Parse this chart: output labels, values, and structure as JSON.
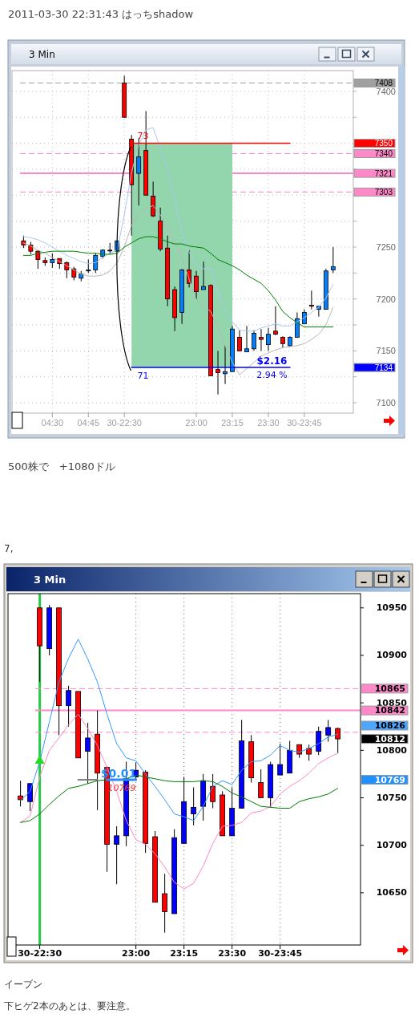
{
  "chart_data": [
    {
      "type": "candlestick",
      "title": "3 Min",
      "categories": [
        null,
        null,
        null,
        null,
        "04:30",
        null,
        null,
        null,
        null,
        "04:45",
        null,
        null,
        null,
        null,
        "30-22:30",
        null,
        null,
        null,
        null,
        null,
        null,
        null,
        null,
        null,
        "23:00",
        null,
        null,
        null,
        null,
        "23:15",
        null,
        null,
        null,
        null,
        "23:30",
        null,
        null,
        null,
        null,
        "30-23:45",
        null,
        null,
        null,
        null
      ],
      "ohlc": [
        [
          7256,
          7261,
          7249,
          7252
        ],
        [
          7252,
          7255,
          7243,
          7246
        ],
        [
          7246,
          7247,
          7229,
          7238
        ],
        [
          7237,
          7240,
          7232,
          7235
        ],
        [
          7235,
          7244,
          7230,
          7238
        ],
        [
          7239,
          7239,
          7229,
          7234
        ],
        [
          7235,
          7236,
          7220,
          7228
        ],
        [
          7229,
          7231,
          7218,
          7221
        ],
        [
          7220,
          7227,
          7217,
          7224
        ],
        [
          7227,
          7238,
          7225,
          7228
        ],
        [
          7228,
          7244,
          7225,
          7242
        ],
        [
          7241,
          7248,
          7239,
          7247
        ],
        [
          7247,
          7254,
          7243,
          7247
        ],
        [
          7246,
          7256,
          7246,
          7256
        ],
        [
          7408,
          7415,
          7375,
          7375
        ],
        [
          7354,
          7358,
          7261,
          7310
        ],
        [
          7321,
          7355,
          7290,
          7337
        ],
        [
          7343,
          7381,
          7300,
          7300
        ],
        [
          7299,
          7313,
          7279,
          7280
        ],
        [
          7275,
          7288,
          7246,
          7248
        ],
        [
          7249,
          7261,
          7193,
          7200
        ],
        [
          7209,
          7212,
          7169,
          7182
        ],
        [
          7187,
          7229,
          7176,
          7228
        ],
        [
          7228,
          7247,
          7211,
          7215
        ],
        [
          7222,
          7227,
          7200,
          7207
        ],
        [
          7209,
          7236,
          7209,
          7212
        ],
        [
          7213,
          7214,
          7126,
          7126
        ],
        [
          7132,
          7150,
          7108,
          7129
        ],
        [
          7128,
          7155,
          7118,
          7130
        ],
        [
          7130,
          7174,
          7130,
          7171
        ],
        [
          7163,
          7170,
          7150,
          7150
        ],
        [
          7149,
          7174,
          7149,
          7152
        ],
        [
          7152,
          7170,
          7150,
          7167
        ],
        [
          7163,
          7171,
          7150,
          7161
        ],
        [
          7156,
          7172,
          7150,
          7166
        ],
        [
          7169,
          7193,
          7165,
          7166
        ],
        [
          7163,
          7164,
          7153,
          7157
        ],
        [
          7155,
          7164,
          7154,
          7163
        ],
        [
          7163,
          7187,
          7163,
          7181
        ],
        [
          7176,
          7190,
          7176,
          7187
        ],
        [
          7194,
          7208,
          7190,
          7193
        ],
        [
          7190,
          7193,
          7183,
          7193
        ],
        [
          7190,
          7229,
          7190,
          7227
        ],
        [
          7228,
          7250,
          7225,
          7231
        ]
      ],
      "colors": [
        "#ff0000",
        "#ff0000",
        "#ff0000",
        "#ff0000",
        "#0080ff",
        "#ff0000",
        "#ff0000",
        "#ff0000",
        "#0080ff",
        "#0080ff",
        "#0080ff",
        "#0080ff",
        "#000000",
        "#0080ff",
        "#ff0000",
        "#ff0000",
        "#0080ff",
        "#ff0000",
        "#ff0000",
        "#ff0000",
        "#ff0000",
        "#ff0000",
        "#0080ff",
        "#ff0000",
        "#ff0000",
        "#0080ff",
        "#ff0000",
        "#ff0000",
        "#0080ff",
        "#0080ff",
        "#ff0000",
        "#0080ff",
        "#0080ff",
        "#ff0000",
        "#0080ff",
        "#ff0000",
        "#ff0000",
        "#0080ff",
        "#0080ff",
        "#0080ff",
        "#ff0000",
        "#0080ff",
        "#0080ff",
        "#0080ff"
      ],
      "series": [
        {
          "type": "line",
          "color": "#a9c9ef",
          "values": [
            7260,
            7259,
            7257,
            7254,
            7250,
            7246,
            7242,
            7239,
            7236,
            7234,
            7235,
            7240,
            7244,
            7247,
            7281,
            7322,
            7348,
            7363,
            7365,
            7345,
            7325,
            7296,
            7265,
            7245,
            7233,
            7229,
            7229,
            7206,
            7188,
            7178,
            7170,
            7169,
            7169,
            7172,
            7174,
            7176,
            7174,
            7174,
            7178,
            7182,
            7187,
            7192,
            7201,
            7214
          ]
        },
        {
          "type": "line",
          "color": "#b8b8b8",
          "values": [
            7254,
            7251,
            7247,
            7244,
            7240,
            7236,
            7232,
            7228,
            7224,
            7222,
            7222,
            7223,
            7227,
            7235,
            7250,
            7271,
            7281,
            7287,
            7290,
            7281,
            7268,
            7255,
            7240,
            7219,
            7199,
            7193,
            7188,
            7173,
            7155,
            7139,
            7127,
            7133,
            7139,
            7145,
            7148,
            7151,
            7153,
            7154,
            7155,
            7157,
            7161,
            7166,
            7175,
            7192
          ]
        },
        {
          "type": "line",
          "color": "#008000",
          "values": [
            7242,
            7242,
            7244,
            7245,
            7246,
            7246,
            7246,
            7246,
            7245,
            7244,
            7244,
            7243,
            7243,
            7244,
            7250,
            7254,
            7258,
            7260,
            7260,
            7258,
            7255,
            7253,
            7253,
            7251,
            7250,
            7249,
            7244,
            7238,
            7235,
            7232,
            7228,
            7223,
            7219,
            7215,
            7208,
            7199,
            7188,
            7182,
            7177,
            7173,
            7173,
            7173,
            7173,
            7173
          ]
        },
        {
          "type": "line",
          "color": "#ff0000",
          "values": [
            null,
            null,
            null,
            null,
            null,
            null,
            null,
            null,
            null,
            null,
            null,
            null,
            null,
            null,
            null,
            7350,
            7350,
            7350,
            7350,
            7350,
            7350,
            7350,
            7350,
            7350,
            7350,
            7350,
            7350,
            7350,
            7350,
            7350,
            7350,
            7350,
            7350,
            7350,
            7350,
            7350,
            7350,
            7350,
            null,
            null,
            null,
            null,
            null,
            null
          ],
          "upper": [
            null,
            null,
            null,
            null,
            null,
            null,
            null,
            null,
            null,
            null,
            null,
            null,
            null,
            null,
            null,
            7350,
            7350,
            7350,
            7350,
            7350,
            7350,
            7350,
            7350,
            7350,
            7350,
            7350,
            7350,
            7350,
            7350,
            7350,
            null,
            null,
            null,
            null,
            null,
            null,
            null,
            null,
            null,
            null,
            null,
            null,
            null,
            null
          ],
          "lower": [
            null,
            null,
            null,
            null,
            null,
            null,
            null,
            null,
            null,
            null,
            null,
            null,
            null,
            null,
            null,
            7134,
            7134,
            7134,
            7134,
            7134,
            7134,
            7134,
            7134,
            7134,
            7134,
            7134,
            7134,
            7134,
            7134,
            7134,
            null,
            null,
            null,
            null,
            null,
            null,
            null,
            null,
            null,
            null,
            null,
            null,
            null,
            null
          ]
        },
        {
          "type": "line",
          "color": "#0000ff",
          "values": [
            null,
            null,
            null,
            null,
            null,
            null,
            null,
            null,
            null,
            null,
            null,
            null,
            null,
            null,
            null,
            7134,
            7134,
            7134,
            7134,
            7134,
            7134,
            7134,
            7134,
            7134,
            7134,
            7134,
            7134,
            7134,
            7134,
            7134,
            7134,
            7134,
            7134,
            7134,
            7134,
            7134,
            7134,
            7134,
            null,
            null,
            null,
            null,
            null,
            null
          ]
        }
      ],
      "ylim": [
        7090,
        7420
      ],
      "yticks": [
        7100,
        {
          "value": 7125,
          "label": null
        },
        7150,
        {
          "value": 7175,
          "label": null
        },
        7200,
        {
          "value": 7225,
          "label": null
        },
        7250,
        {
          "value": 7275,
          "label": null
        },
        {
          "value": 7300,
          "label": null
        },
        {
          "value": 7325,
          "label": null
        },
        {
          "value": 7350,
          "label": null
        },
        {
          "value": 7375,
          "label": null
        },
        7400
      ],
      "grid": true,
      "ref_lines": [
        {
          "axis": "y",
          "value": 7408,
          "label": "7408",
          "color": "#a0a0a0",
          "line_style": "dashed"
        },
        {
          "axis": "y",
          "value": 7340,
          "label": "7340",
          "color": "#ff88c8",
          "line_style": "dashed"
        },
        {
          "axis": "y",
          "value": 7321,
          "label": "7321",
          "color": "#ff88c8",
          "line_style": "solid"
        },
        {
          "axis": "y",
          "value": 7303,
          "label": "7303",
          "color": "#ff88c8",
          "line_style": "dashed"
        }
      ],
      "annotations": [
        "2011-03-30 22:31:43 はっちshadow",
        {
          "text": "73",
          "y": 7350
        },
        {
          "text": "71",
          "y": 7134
        },
        {
          "text": "$2.16",
          "y": 7134
        },
        {
          "text": "2.94 %",
          "y": 7134
        },
        "500株で　+1080ドル",
        "7350",
        "7134"
      ]
    },
    {
      "type": "candlestick",
      "title": "3 Min",
      "categories": [
        null,
        null,
        "30-22:30",
        null,
        null,
        null,
        null,
        null,
        null,
        null,
        null,
        null,
        "23:00",
        null,
        null,
        null,
        null,
        "23:15",
        null,
        null,
        null,
        null,
        "23:30",
        null,
        null,
        null,
        null,
        "30-23:45",
        null,
        null,
        null,
        null,
        null,
        null
      ],
      "ohlc": [
        [
          10752,
          10768,
          10741,
          10748
        ],
        [
          10746,
          10765,
          10736,
          10765
        ],
        [
          10950,
          10950,
          10872,
          10910
        ],
        [
          10907,
          10953,
          10900,
          10950
        ],
        [
          10950,
          10950,
          10816,
          10847
        ],
        [
          10847,
          10868,
          10825,
          10863
        ],
        [
          10862,
          10862,
          10792,
          10792
        ],
        [
          10799,
          10829,
          10765,
          10813
        ],
        [
          10817,
          10842,
          10737,
          10776
        ],
        [
          10782,
          10783,
          10672,
          10701
        ],
        [
          10701,
          10720,
          10659,
          10710
        ],
        [
          10710,
          10788,
          10699,
          10770
        ],
        [
          10772,
          10787,
          10769,
          10779
        ],
        [
          10777,
          10779,
          10692,
          10702
        ],
        [
          10709,
          10715,
          10640,
          10640
        ],
        [
          10649,
          10670,
          10608,
          10630
        ],
        [
          10628,
          10717,
          10628,
          10708
        ],
        [
          10702,
          10772,
          10702,
          10746
        ],
        [
          10733,
          10761,
          10721,
          10740
        ],
        [
          10741,
          10775,
          10726,
          10768
        ],
        [
          10762,
          10775,
          10739,
          10746
        ],
        [
          10753,
          10757,
          10710,
          10710
        ],
        [
          10710,
          10761,
          10710,
          10739
        ],
        [
          10739,
          10832,
          10739,
          10810
        ],
        [
          10809,
          10816,
          10766,
          10771
        ],
        [
          10766,
          10780,
          10750,
          10750
        ],
        [
          10750,
          10788,
          10740,
          10785
        ],
        [
          10774,
          10807,
          10774,
          10785
        ],
        [
          10776,
          10810,
          10776,
          10800
        ],
        [
          10806,
          10806,
          10792,
          10796
        ],
        [
          10802,
          10806,
          10789,
          10796
        ],
        [
          10799,
          10825,
          10795,
          10820
        ],
        [
          10816,
          10832,
          10809,
          10824
        ],
        [
          10823,
          10824,
          10797,
          10812
        ]
      ],
      "colors": [
        "#ff0000",
        "#0000ff",
        "#ff0000",
        "#0000ff",
        "#ff0000",
        "#0000ff",
        "#ff0000",
        "#0000ff",
        "#ff0000",
        "#ff0000",
        "#0000ff",
        "#0000ff",
        "#0000ff",
        "#ff0000",
        "#ff0000",
        "#ff0000",
        "#0000ff",
        "#0000ff",
        "#0000ff",
        "#0000ff",
        "#ff0000",
        "#ff0000",
        "#0000ff",
        "#0000ff",
        "#ff0000",
        "#ff0000",
        "#0000ff",
        "#0000ff",
        "#0000ff",
        "#ff0000",
        "#ff0000",
        "#0000ff",
        "#0000ff",
        "#ff0000"
      ],
      "series": [
        {
          "type": "line",
          "color": "#3399ff",
          "values": [
            10747,
            10757,
            10788,
            10830,
            10872,
            10897,
            10917,
            10896,
            10872,
            10838,
            10807,
            10792,
            10789,
            10775,
            10762,
            10748,
            10733,
            10730,
            10726,
            10741,
            10762,
            10768,
            10764,
            10779,
            10788,
            10789,
            10795,
            10805,
            10800,
            10798,
            10802,
            10807,
            10814,
            10817
          ]
        },
        {
          "type": "line",
          "color": "#ff88c8",
          "values": [
            10724,
            10731,
            10772,
            10800,
            10813,
            10827,
            10838,
            10823,
            10805,
            10782,
            10757,
            10726,
            10706,
            10701,
            10691,
            10677,
            10661,
            10654,
            10660,
            10678,
            10702,
            10720,
            10721,
            10724,
            10734,
            10736,
            10741,
            10754,
            10762,
            10768,
            10776,
            10786,
            10792,
            10797
          ]
        },
        {
          "type": "line",
          "color": "#007a00",
          "values": [
            10724,
            10726,
            10733,
            10743,
            10752,
            10760,
            10762,
            10765,
            10768,
            10769,
            10769,
            10770,
            10774,
            10772,
            10770,
            10768,
            10767,
            10767,
            10767,
            10768,
            10767,
            10762,
            10755,
            10751,
            10746,
            10741,
            10740,
            10739,
            10739,
            10746,
            10749,
            10751,
            10754,
            10760
          ]
        },
        {
          "type": "line",
          "color": "#808080",
          "values": [
            null,
            null,
            null,
            null,
            null,
            null,
            10769,
            10769,
            10769,
            null,
            null,
            null,
            null,
            null,
            null,
            null,
            null,
            null,
            null,
            null,
            null,
            null,
            null,
            null,
            null,
            null,
            null,
            null,
            null,
            null,
            null,
            null,
            null,
            null
          ]
        },
        {
          "type": "line",
          "color": "#2a8cff",
          "values": [
            null,
            null,
            null,
            null,
            null,
            null,
            null,
            null,
            null,
            10769,
            10769,
            10769,
            10769,
            null,
            null,
            null,
            null,
            null,
            null,
            null,
            null,
            null,
            null,
            null,
            null,
            null,
            null,
            null,
            null,
            null,
            null,
            null,
            null,
            null
          ]
        },
        {
          "type": "scatter",
          "color": "#22dd22",
          "marker": "triangle",
          "x": [
            "30-22:30"
          ],
          "values": [
            10790
          ]
        }
      ],
      "ylim": [
        10595,
        10965
      ],
      "yticks": [
        10650,
        10700,
        10750,
        10800,
        10850,
        10900,
        10950
      ],
      "grid": "x",
      "ref_lines": [
        {
          "axis": "x",
          "value": "30-22:30",
          "color": "#22cc44"
        },
        {
          "axis": "y",
          "value": 10865,
          "label": "10865",
          "color": "#ff88c8",
          "line_style": "dashed"
        },
        {
          "axis": "y",
          "value": 10842,
          "label": "10842",
          "color": "#ff88c8",
          "line_style": "solid"
        },
        {
          "axis": "y",
          "value": 10819,
          "color": "#ff88c8",
          "line_style": "dashed"
        }
      ],
      "annotations": [
        "7,",
        {
          "text": "$0.01",
          "y": 10769
        },
        "10769",
        "イーブン",
        "下ヒゲ2本のあとは、要注意。",
        "10826",
        "10812",
        "10769"
      ]
    }
  ]
}
